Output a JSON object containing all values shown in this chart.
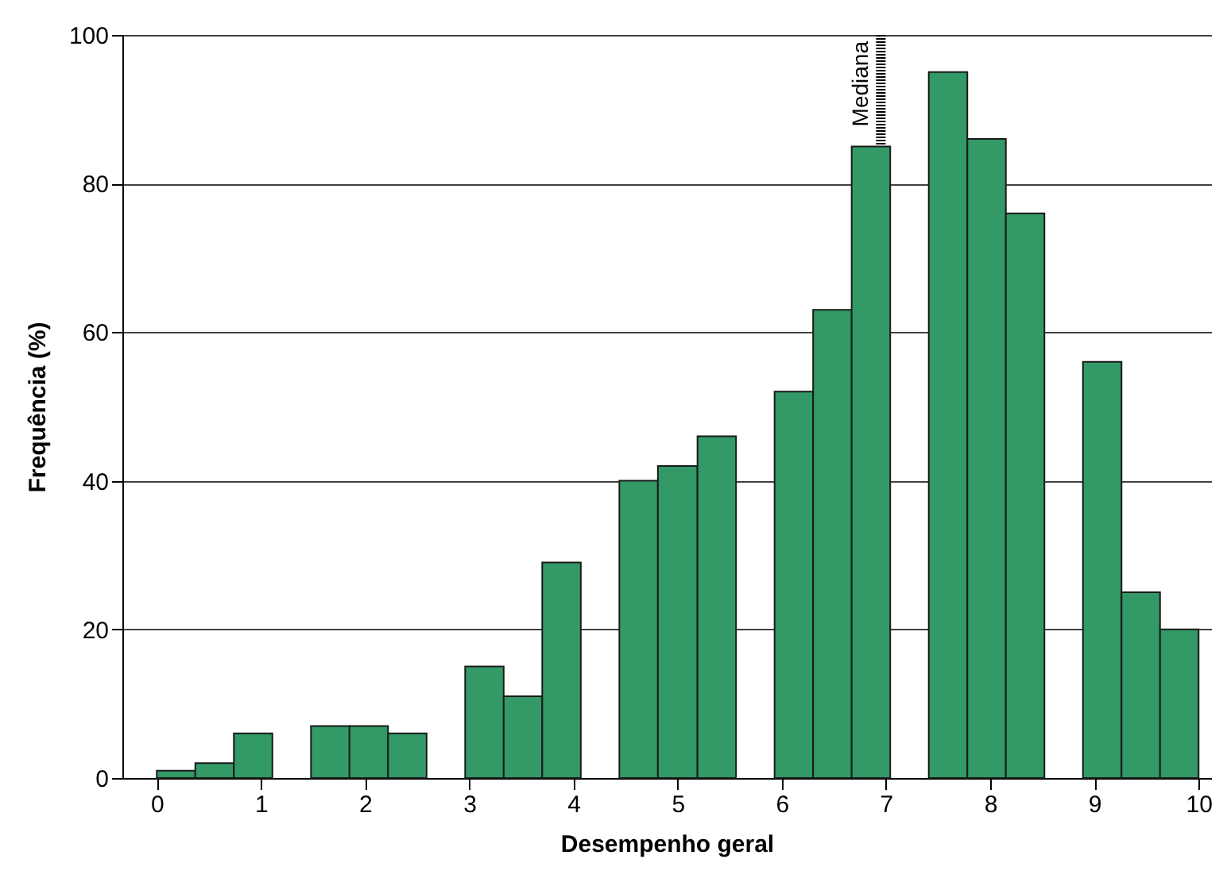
{
  "chart_data": {
    "type": "histogram",
    "xlabel": "Desempenho geral",
    "ylabel": "Frequência (%)",
    "bins": [
      0,
      0.37,
      0.74,
      1.11,
      1.48,
      1.85,
      2.22,
      2.59,
      2.96,
      3.33,
      3.7,
      4.07,
      4.44,
      4.81,
      5.19,
      5.56,
      5.93,
      6.3,
      6.67,
      7.04,
      7.41,
      7.78,
      8.15,
      8.52,
      8.89,
      9.26,
      9.63,
      10
    ],
    "values": [
      1,
      2,
      6,
      0,
      7,
      7,
      6,
      0,
      15,
      11,
      29,
      0,
      40,
      42,
      46,
      0,
      52,
      63,
      85,
      0,
      95,
      86,
      76,
      0,
      56,
      25,
      20
    ],
    "color": "#339966",
    "xlim": [
      -0.33,
      10.12
    ],
    "xticks": [
      0,
      1,
      2,
      3,
      4,
      5,
      6,
      7,
      8,
      9,
      10
    ],
    "ylim": [
      0,
      100
    ],
    "yticks": [
      0,
      20,
      40,
      60,
      80,
      100
    ],
    "grid": "y",
    "ref_lines": [
      {
        "axis": "x",
        "value": 6.95,
        "label": "Mediana",
        "line_style": "dotted",
        "color": "#000000"
      }
    ]
  }
}
